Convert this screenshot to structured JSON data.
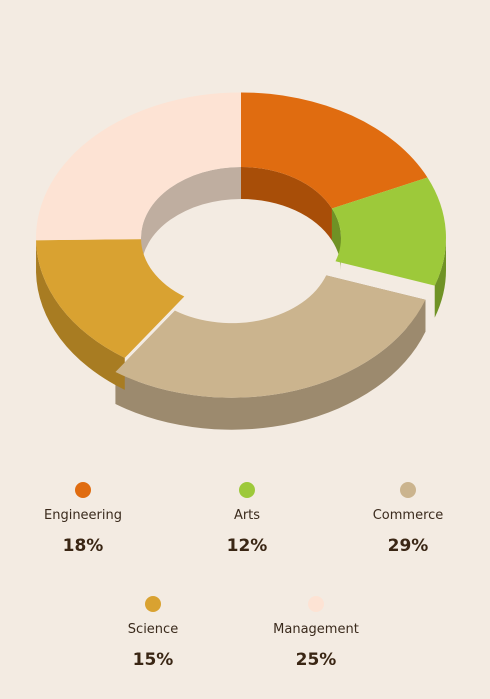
{
  "chart_data": {
    "type": "pie",
    "variant": "donut-3d",
    "title": "",
    "categories": [
      "Engineering",
      "Arts",
      "Commerce",
      "Science",
      "Management"
    ],
    "values": [
      18,
      12,
      29,
      15,
      25
    ],
    "value_labels": [
      "18%",
      "12%",
      "29%",
      "15%",
      "25%"
    ],
    "colors": [
      "#e06c10",
      "#9dc93a",
      "#cbb48e",
      "#d9a231",
      "#fde3d4"
    ],
    "side_colors": [
      "#a84e08",
      "#6f9225",
      "#9c8a6e",
      "#a87c22",
      "#bfaea0"
    ],
    "exploded": "Commerce",
    "legend_position": "bottom"
  }
}
